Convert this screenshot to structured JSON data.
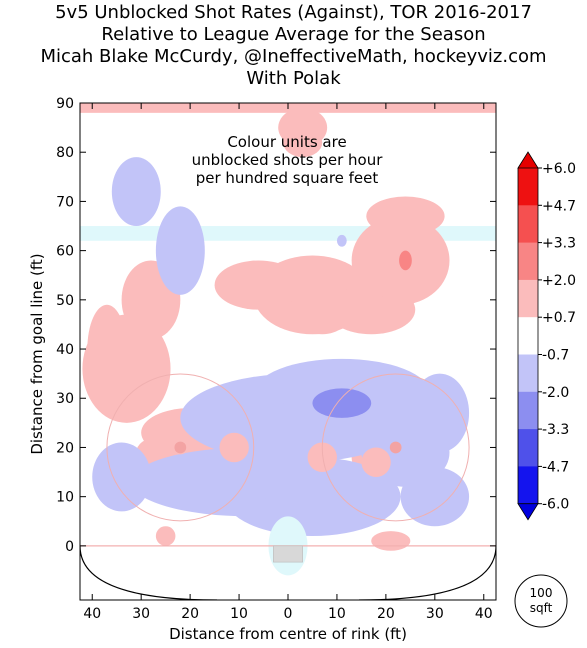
{
  "title_lines": [
    "5v5 Unblocked Shot Rates (Against), TOR 2016-2017",
    "Relative to League Average for the Season",
    "Micah Blake McCurdy, @IneffectiveMath, hockeyviz.com",
    "With Polak"
  ],
  "annotation": [
    "Colour units are",
    "unblocked shots per hour",
    "per hundred square feet"
  ],
  "area_marker": [
    "100",
    "sqft"
  ],
  "chart_data": {
    "type": "heatmap",
    "xlabel": "Distance from centre of rink (ft)",
    "ylabel": "Distance from goal line (ft)",
    "xlim": [
      -42.5,
      42.5
    ],
    "ylim": [
      -11,
      90
    ],
    "xticks": [
      -40,
      -30,
      -20,
      -10,
      0,
      10,
      20,
      30,
      40
    ],
    "xtick_labels": [
      "40",
      "30",
      "20",
      "10",
      "0",
      "10",
      "20",
      "30",
      "40"
    ],
    "yticks": [
      0,
      10,
      20,
      30,
      40,
      50,
      60,
      70,
      80,
      90
    ],
    "ytick_labels": [
      "0",
      "10",
      "20",
      "30",
      "40",
      "50",
      "60",
      "70",
      "80",
      "90"
    ],
    "colorbar": {
      "labels": [
        "+6.0",
        "+4.7",
        "+3.3",
        "+2.0",
        "+0.7",
        "-0.7",
        "-2.0",
        "-3.3",
        "-4.7",
        "-6.0"
      ],
      "colors": [
        "#ee1111",
        "#f55050",
        "#f88585",
        "#fbbcbc",
        "#ffffff",
        "#c2c4f8",
        "#8c8ef0",
        "#4f51ea",
        "#1414ee"
      ]
    },
    "regions": [
      {
        "level": 0.8,
        "x": -33,
        "y": 36,
        "rx": 9,
        "ry": 11
      },
      {
        "level": 0.8,
        "x": -28,
        "y": 50,
        "rx": 6,
        "ry": 8
      },
      {
        "level": 0.8,
        "x": -37,
        "y": 40,
        "rx": 4,
        "ry": 9
      },
      {
        "level": 1.5,
        "x": -39,
        "y": 35,
        "rx": 1.2,
        "ry": 1.8
      },
      {
        "level": 0.8,
        "x": -27,
        "y": 19,
        "rx": 4,
        "ry": 3
      },
      {
        "level": 0.8,
        "x": -20,
        "y": 23,
        "rx": 10,
        "ry": 5
      },
      {
        "level": 0.8,
        "x": -22,
        "y": 19,
        "rx": 6,
        "ry": 3
      },
      {
        "level": 1.5,
        "x": -22,
        "y": 20,
        "rx": 1.6,
        "ry": 1.4
      },
      {
        "level": 0.8,
        "x": -25,
        "y": 2,
        "rx": 2,
        "ry": 2
      },
      {
        "level": 0.8,
        "x": 3,
        "y": 85,
        "rx": 5,
        "ry": 4
      },
      {
        "level": 1.5,
        "x": 3,
        "y": 82,
        "rx": 4,
        "ry": 3
      },
      {
        "level": 0.8,
        "x": 5,
        "y": 51,
        "rx": 12,
        "ry": 8
      },
      {
        "level": 0.8,
        "x": -6,
        "y": 53,
        "rx": 9,
        "ry": 5
      },
      {
        "level": 0.8,
        "x": 17,
        "y": 48,
        "rx": 9,
        "ry": 5
      },
      {
        "level": 1.5,
        "x": 7,
        "y": 48,
        "rx": 6,
        "ry": 5
      },
      {
        "level": 0.8,
        "x": 23,
        "y": 58,
        "rx": 10,
        "ry": 9
      },
      {
        "level": 0.8,
        "x": 24,
        "y": 67,
        "rx": 8,
        "ry": 4
      },
      {
        "level": 1.5,
        "x": 23,
        "y": 56,
        "rx": 5,
        "ry": 8
      },
      {
        "level": 2.2,
        "x": 24,
        "y": 58,
        "rx": 1.3,
        "ry": 2
      },
      {
        "level": 0.8,
        "x": 19,
        "y": 18,
        "rx": 6,
        "ry": 5
      },
      {
        "level": 1.5,
        "x": 18,
        "y": 17,
        "rx": 3,
        "ry": 3
      },
      {
        "level": 0.8,
        "x": 21,
        "y": 1,
        "rx": 4,
        "ry": 2
      },
      {
        "level": -0.8,
        "x": -31,
        "y": 72,
        "rx": 5,
        "ry": 7
      },
      {
        "level": -0.8,
        "x": -22,
        "y": 60,
        "rx": 5,
        "ry": 9
      },
      {
        "level": -1.5,
        "x": -21,
        "y": 56,
        "rx": 3,
        "ry": 4
      },
      {
        "level": -0.8,
        "x": 11,
        "y": 62,
        "rx": 1,
        "ry": 1.2
      },
      {
        "level": -0.8,
        "x": 2,
        "y": 26,
        "rx": 24,
        "ry": 9
      },
      {
        "level": -0.8,
        "x": 11,
        "y": 31,
        "rx": 18,
        "ry": 7
      },
      {
        "level": -0.8,
        "x": -8,
        "y": 13,
        "rx": 24,
        "ry": 7
      },
      {
        "level": -0.8,
        "x": 5,
        "y": 10,
        "rx": 18,
        "ry": 8
      },
      {
        "level": -0.8,
        "x": -34,
        "y": 14,
        "rx": 6,
        "ry": 7
      },
      {
        "level": -0.8,
        "x": 31,
        "y": 27,
        "rx": 6,
        "ry": 8
      },
      {
        "level": -0.8,
        "x": 30,
        "y": 10,
        "rx": 7,
        "ry": 6
      },
      {
        "level": -0.8,
        "x": 24,
        "y": 19,
        "rx": 9,
        "ry": 7
      },
      {
        "level": -1.5,
        "x": -13,
        "y": 11,
        "rx": 9,
        "ry": 4
      },
      {
        "level": -1.5,
        "x": 9,
        "y": 31,
        "rx": 11,
        "ry": 5
      },
      {
        "level": -2.2,
        "x": 11,
        "y": 29,
        "rx": 6,
        "ry": 3
      },
      {
        "level": -3.0,
        "x": 11,
        "y": 29,
        "rx": 3,
        "ry": 1.6
      },
      {
        "level": -1.5,
        "x": 7,
        "y": 7,
        "rx": 1,
        "ry": 1.2
      },
      {
        "level": 0.8,
        "x": -11,
        "y": 20,
        "rx": 3,
        "ry": 3
      },
      {
        "level": 0.8,
        "x": 7,
        "y": 18,
        "rx": 3,
        "ry": 3
      }
    ],
    "boundary_bands": [
      {
        "level": 0.8,
        "y_from": 88,
        "y_to": 90
      },
      {
        "level": -0.4,
        "y_from": 62,
        "y_to": 65
      }
    ],
    "crease_region": {
      "level": -0.4,
      "x": 0,
      "y": 0,
      "rx": 4,
      "ry": 6
    }
  }
}
